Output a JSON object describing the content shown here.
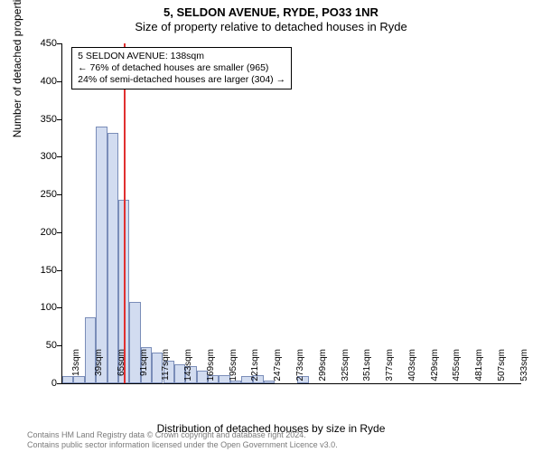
{
  "header": {
    "line1": "5, SELDON AVENUE, RYDE, PO33 1NR",
    "line2": "Size of property relative to detached houses in Ryde"
  },
  "yaxis": {
    "label": "Number of detached properties",
    "min": 0,
    "max": 450,
    "step": 50,
    "ticks": [
      0,
      50,
      100,
      150,
      200,
      250,
      300,
      350,
      400,
      450
    ]
  },
  "xaxis": {
    "label": "Distribution of detached houses by size in Ryde",
    "tick_every": 2,
    "labels": [
      "13sqm",
      "39sqm",
      "65sqm",
      "91sqm",
      "117sqm",
      "143sqm",
      "169sqm",
      "195sqm",
      "221sqm",
      "247sqm",
      "273sqm",
      "299sqm",
      "325sqm",
      "351sqm",
      "377sqm",
      "403sqm",
      "429sqm",
      "455sqm",
      "481sqm",
      "507sqm",
      "533sqm"
    ]
  },
  "bars": {
    "values": [
      10,
      10,
      87,
      340,
      332,
      243,
      108,
      48,
      41,
      30,
      25,
      23,
      17,
      11,
      11,
      4,
      10,
      11,
      4,
      0,
      0,
      10,
      0,
      0,
      0,
      0,
      0,
      0,
      0,
      0,
      0,
      0,
      0,
      0,
      0,
      0,
      0,
      0,
      0,
      0,
      0
    ],
    "fill": "#d2dcf0",
    "stroke": "#7a8db8"
  },
  "marker": {
    "bin_index": 5,
    "color": "#e03030"
  },
  "annotation": {
    "line1": "5 SELDON AVENUE: 138sqm",
    "line2": "← 76% of detached houses are smaller (965)",
    "line3": "24% of semi-detached houses are larger (304) →"
  },
  "footer": {
    "line1": "Contains HM Land Registry data © Crown copyright and database right 2024.",
    "line2": "Contains public sector information licensed under the Open Government Licence v3.0."
  },
  "style": {
    "background_color": "#ffffff",
    "title_fontsize": 13,
    "axis_label_fontsize": 12,
    "tick_fontsize": 11,
    "xtick_fontsize": 10,
    "footer_color": "#7a7a7a"
  }
}
